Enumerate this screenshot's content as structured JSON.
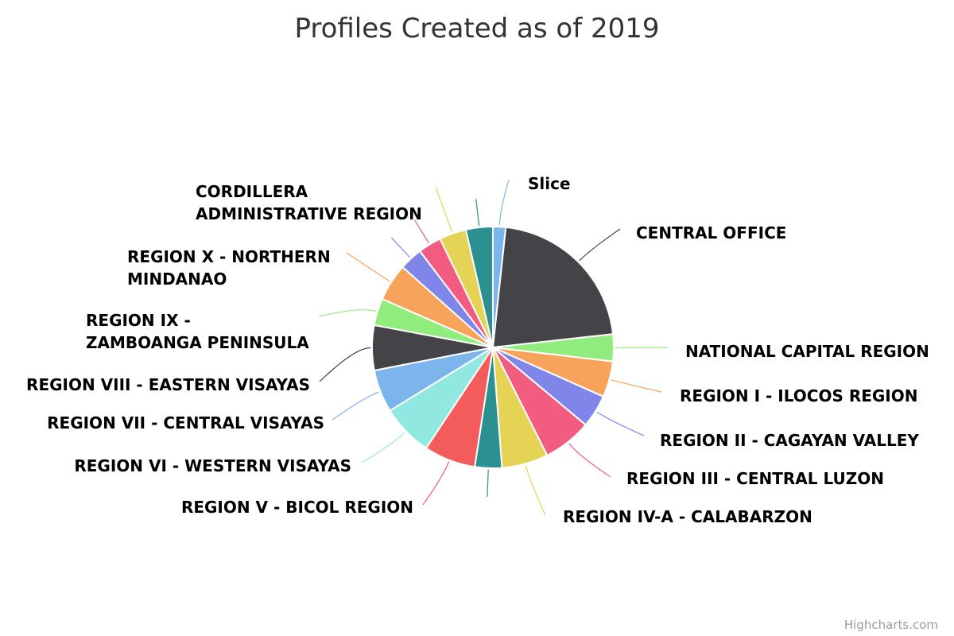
{
  "chart_data": {
    "type": "pie",
    "title": "Profiles Created as of 2019",
    "credit": "Highcharts.com",
    "slices": [
      {
        "name": "Slice",
        "value": 1.7,
        "color": "#7cb5ec"
      },
      {
        "name": "CENTRAL OFFICE",
        "value": 21.5,
        "color": "#434348"
      },
      {
        "name": "NATIONAL CAPITAL REGION",
        "value": 3.6,
        "color": "#90ed7d"
      },
      {
        "name": "REGION I - ILOCOS REGION",
        "value": 4.8,
        "color": "#f7a35c"
      },
      {
        "name": "REGION II - CAGAYAN VALLEY",
        "value": 4.4,
        "color": "#8085e9"
      },
      {
        "name": "REGION III - CENTRAL LUZON",
        "value": 6.5,
        "color": "#f15c80"
      },
      {
        "name": "REGION IV-A - CALABARZON",
        "value": 6.2,
        "color": "#e4d354"
      },
      {
        "name": "",
        "value": 3.6,
        "color": "#2b908f"
      },
      {
        "name": "REGION V - BICOL REGION",
        "value": 6.9,
        "color": "#f45b5b"
      },
      {
        "name": "REGION VI - WESTERN VISAYAS",
        "value": 6.9,
        "color": "#91e8e1"
      },
      {
        "name": "REGION VII - CENTRAL VISAYAS",
        "value": 5.7,
        "color": "#7cb5ec"
      },
      {
        "name": "REGION VIII - EASTERN VISAYAS",
        "value": 6.0,
        "color": "#434348"
      },
      {
        "name": "REGION IX - ZAMBOANGA PENINSULA",
        "value": 3.6,
        "color": "#90ed7d"
      },
      {
        "name": "REGION X - NORTHERN MINDANAO",
        "value": 5.0,
        "color": "#f7a35c"
      },
      {
        "name": "",
        "value": 3.1,
        "color": "#8085e9"
      },
      {
        "name": "",
        "value": 3.1,
        "color": "#f15c80"
      },
      {
        "name": "CORDILLERA ADMINISTRATIVE REGION",
        "value": 3.6,
        "color": "#e4d354"
      },
      {
        "name": "",
        "value": 3.6,
        "color": "#2b908f"
      }
    ]
  }
}
